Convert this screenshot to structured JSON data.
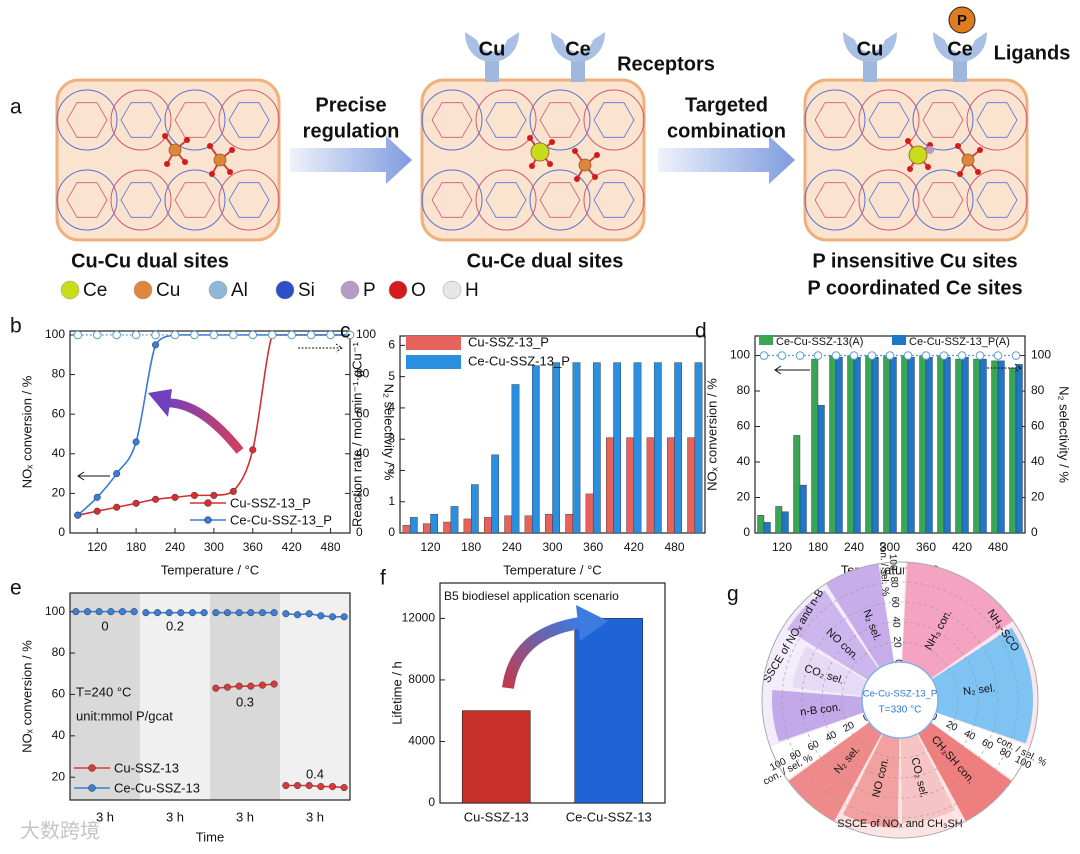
{
  "diagram": {
    "label": "a",
    "arrows": [
      {
        "lines": [
          "Precise",
          "regulation"
        ]
      },
      {
        "lines": [
          "Targeted",
          "combination"
        ]
      }
    ],
    "stages": [
      {
        "caption": [
          "Cu-Cu dual sites"
        ]
      },
      {
        "caption": [
          "Cu-Ce dual sites"
        ],
        "receptors": [
          "Cu",
          "Ce"
        ],
        "tag": "Receptors"
      },
      {
        "caption": [
          "P insensitive Cu sites",
          "P coordinated Ce sites"
        ],
        "receptors": [
          "Cu",
          "Ce"
        ],
        "ligand": "P",
        "tag": "Ligands"
      }
    ],
    "legend": [
      {
        "name": "Ce",
        "color": "#c9dc1a"
      },
      {
        "name": "Cu",
        "color": "#e0863a"
      },
      {
        "name": "Al",
        "color": "#8fb8d8"
      },
      {
        "name": "Si",
        "color": "#2f4fc8"
      },
      {
        "name": "P",
        "color": "#b89ac8"
      },
      {
        "name": "O",
        "color": "#d41a1a"
      },
      {
        "name": "H",
        "color": "#e6e6e6"
      }
    ]
  },
  "watermark": "大数跨境",
  "chart_data": [
    {
      "panel": "b",
      "type": "line",
      "xlabel": "Temperature / °C",
      "ylabel": "NOₓ conversion / %",
      "y2label": "N₂ selectivity / %",
      "x": [
        90,
        120,
        150,
        180,
        210,
        240,
        270,
        300,
        330,
        360,
        390,
        420,
        450,
        480,
        510
      ],
      "xlim": [
        78,
        510
      ],
      "xticks": [
        120,
        180,
        240,
        300,
        360,
        420,
        480
      ],
      "ylim": [
        0,
        102
      ],
      "yticks": [
        0,
        20,
        40,
        60,
        80,
        100
      ],
      "y2lim": [
        0,
        102
      ],
      "y2ticks": [
        0,
        20,
        40,
        60,
        80,
        100
      ],
      "legend": "lower right",
      "series": [
        {
          "name": "Cu-SSZ-13_P",
          "color": "#d62f2f",
          "values": [
            9,
            11,
            13,
            15,
            17,
            18,
            19,
            19,
            21,
            42,
            100,
            100,
            100,
            100,
            100
          ]
        },
        {
          "name": "Ce-Cu-SSZ-13_P",
          "color": "#3a7bd5",
          "values": [
            9,
            18,
            30,
            46,
            95,
            100,
            100,
            100,
            100,
            100,
            100,
            100,
            100,
            100,
            100
          ]
        },
        {
          "color": "#5b9bd5",
          "axis": "y2",
          "values": [
            100,
            100,
            100,
            100,
            100,
            100,
            100,
            100,
            100,
            100,
            100,
            100,
            100,
            100,
            100
          ]
        }
      ]
    },
    {
      "panel": "c",
      "type": "bar",
      "xlabel": "Temperature / °C",
      "ylabel": "Reaction rate / mol·min⁻¹·gCu⁻¹",
      "x": [
        90,
        120,
        150,
        180,
        210,
        240,
        270,
        300,
        330,
        360,
        390,
        420,
        450,
        480,
        510
      ],
      "xlim": [
        75,
        525
      ],
      "xticks": [
        120,
        180,
        240,
        300,
        360,
        420,
        480
      ],
      "ylim": [
        0,
        6.3
      ],
      "yticks": [
        0,
        1,
        2,
        3,
        4,
        5,
        6
      ],
      "legend": "upper left",
      "series": [
        {
          "name": "Cu-SSZ-13_P",
          "color": "#e8625c",
          "values": [
            0.25,
            0.3,
            0.35,
            0.45,
            0.5,
            0.55,
            0.55,
            0.6,
            0.6,
            1.25,
            3.05,
            3.05,
            3.05,
            3.05,
            3.05
          ]
        },
        {
          "name": "Ce-Cu-SSZ-13_P",
          "color": "#2b8fe0",
          "values": [
            0.5,
            0.6,
            0.85,
            1.55,
            2.5,
            4.75,
            5.35,
            5.45,
            5.45,
            5.45,
            5.45,
            5.45,
            5.45,
            5.45,
            5.45
          ]
        }
      ]
    },
    {
      "panel": "d",
      "type": "bar",
      "xlabel": "Temperature / °C",
      "ylabel": "NOₓ conversion / %",
      "y2label": "N₂ selectivity / %",
      "x": [
        90,
        120,
        150,
        180,
        210,
        240,
        270,
        300,
        330,
        360,
        390,
        420,
        450,
        480,
        510
      ],
      "xlim": [
        75,
        525
      ],
      "xticks": [
        120,
        180,
        240,
        300,
        360,
        420,
        480
      ],
      "ylim": [
        0,
        111
      ],
      "yticks": [
        0,
        20,
        40,
        60,
        80,
        100
      ],
      "y2lim": [
        0,
        111
      ],
      "y2ticks": [
        0,
        20,
        40,
        60,
        80,
        100
      ],
      "legend": "top",
      "series": [
        {
          "name": "Ce-Cu-SSZ-13(A)",
          "color": "#3aa655",
          "values": [
            10,
            15,
            55,
            98,
            100,
            100,
            100,
            100,
            100,
            100,
            100,
            98,
            98,
            97,
            93
          ]
        },
        {
          "name": "Ce-Cu-SSZ-13_P(A)",
          "color": "#1f77c8",
          "values": [
            6,
            12,
            27,
            72,
            99,
            99,
            99,
            99,
            99,
            99,
            99,
            99,
            98,
            97,
            95
          ]
        },
        {
          "color": "#5b9bd5",
          "axis": "y2",
          "values": [
            100,
            100,
            100,
            100,
            100,
            100,
            100,
            100,
            100,
            100,
            100,
            100,
            100,
            100,
            100
          ]
        }
      ]
    },
    {
      "panel": "e",
      "type": "line",
      "xlabel": "Time",
      "ylabel": "NOₓ conversion / %",
      "x": [
        0.5,
        1.5,
        2.5,
        3.5,
        4.5,
        5.5,
        6.5,
        7.5,
        8.5,
        9.5,
        10.5,
        11.5,
        12.5,
        13.5,
        14.5,
        15.5,
        16.5,
        17.5,
        18.5,
        19.5,
        20.5,
        21.5,
        22.5,
        23.5
      ],
      "xlim": [
        0,
        24
      ],
      "ylim": [
        9,
        109
      ],
      "yticks": [
        20,
        40,
        60,
        80,
        100
      ],
      "legend": "lower left",
      "segments": [
        {
          "label": "3 h",
          "annotation": "0"
        },
        {
          "label": "3 h",
          "annotation": "0.2"
        },
        {
          "label": "3 h",
          "annotation": "0.3"
        },
        {
          "label": "3 h",
          "annotation": "0.4"
        }
      ],
      "notes": [
        "T=240 °C",
        "unit:mmol P/gcat"
      ],
      "series": [
        {
          "name": "Cu-SSZ-13",
          "color": "#d83a3a",
          "values": [
            null,
            null,
            null,
            null,
            null,
            null,
            null,
            null,
            null,
            null,
            null,
            null,
            63,
            63.5,
            64,
            64,
            64.5,
            65,
            16,
            16,
            16,
            15.5,
            15.5,
            15
          ]
        },
        {
          "name": "Ce-Cu-SSZ-13",
          "color": "#3a7fd5",
          "values": [
            100,
            100,
            100,
            100,
            100,
            100,
            99.5,
            99.5,
            99.5,
            99.5,
            99.5,
            99.5,
            99.5,
            99.5,
            99.5,
            99.5,
            99.5,
            99.5,
            99,
            98.5,
            99,
            98,
            97.5,
            97.5
          ]
        }
      ]
    },
    {
      "panel": "f",
      "type": "bar",
      "ylabel": "Lifetime / h",
      "annotation": "B5 biodiesel application scenario",
      "categories": [
        "Cu-SSZ-13",
        "Ce-Cu-SSZ-13"
      ],
      "values": [
        6000,
        12000
      ],
      "colors": [
        "#c8312a",
        "#1f64d6"
      ],
      "ylim": [
        0,
        14300
      ],
      "yticks": [
        0,
        4000,
        8000,
        12000
      ]
    },
    {
      "panel": "g",
      "type": "polar",
      "title": "Ce-Cu-SSZ-13_P",
      "subtitle": "T=330 °C",
      "rlim": [
        0,
        100
      ],
      "rticks": [
        0,
        20,
        40,
        60,
        80,
        100
      ],
      "raxis_label": "con. / sel. %",
      "groups": [
        {
          "name": "NH₃-SCO",
          "color": "#f7b9cf",
          "items": [
            {
              "name": "NH₃ con.",
              "value": 100,
              "color": "#f4a3c0"
            },
            {
              "name": "N₂ sel.",
              "value": 95,
              "color": "#7ec3f2"
            }
          ]
        },
        {
          "name": "SSCE of NOₓ and CH₃SH",
          "color": "#f5b3b3",
          "items": [
            {
              "name": "CH₃SH con.",
              "value": 100,
              "color": "#ef7f7f"
            },
            {
              "name": "CO₂ sel.",
              "value": 85,
              "color": "#f6c4c4"
            },
            {
              "name": "NO con.",
              "value": 90,
              "color": "#f3a0a0"
            },
            {
              "name": "N₂ sel.",
              "value": 100,
              "color": "#ef8a8a"
            }
          ]
        },
        {
          "name": "SSCE of NOₓ and n-B",
          "color": "#dcc9f0",
          "items": [
            {
              "name": "n-B con.",
              "value": 90,
              "color": "#c3a8ea"
            },
            {
              "name": "CO₂ sel.",
              "value": 70,
              "color": "#e6daf6"
            },
            {
              "name": "NO con.",
              "value": 95,
              "color": "#cdb6ee"
            },
            {
              "name": "N₂ sel.",
              "value": 100,
              "color": "#c7aeeb"
            }
          ]
        }
      ]
    }
  ]
}
